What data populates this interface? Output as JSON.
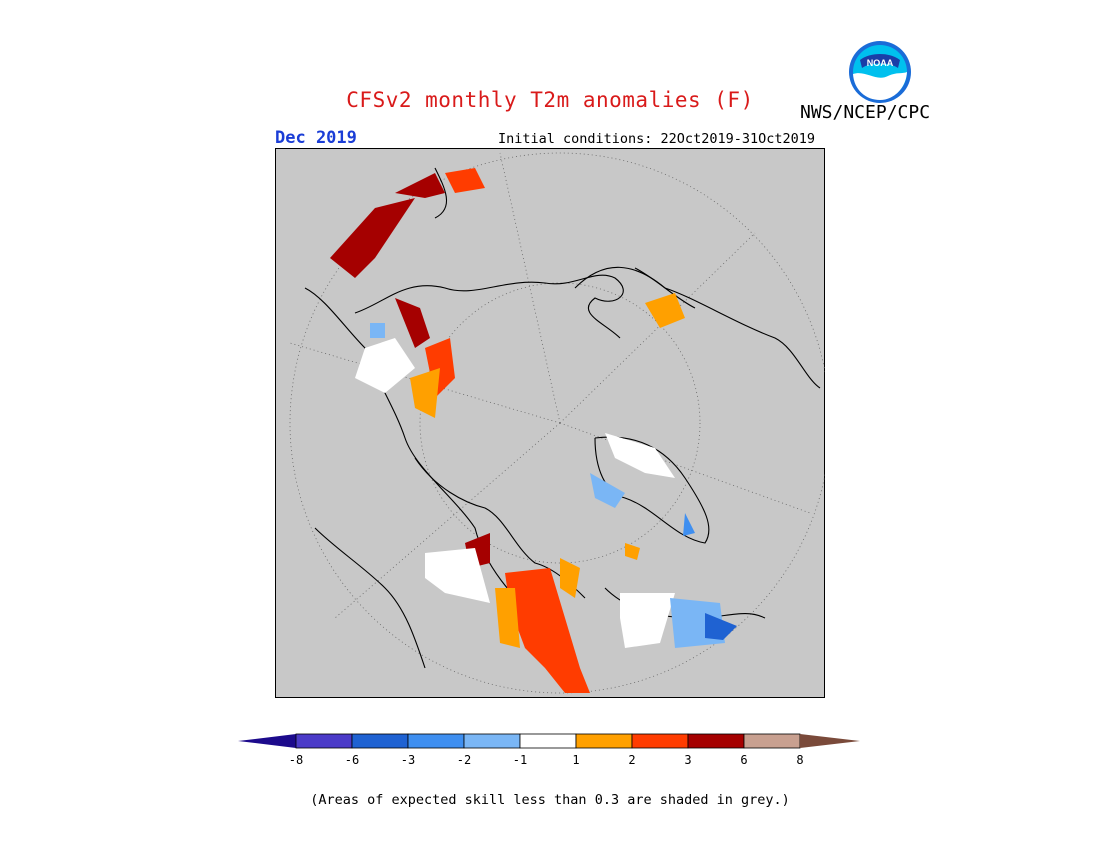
{
  "title": "CFSv2 monthly T2m anomalies (F)",
  "agency": "NWS/NCEP/CPC",
  "logo_text": "NOAA",
  "month": "Dec 2019",
  "initial_conditions": "Initial conditions: 22Oct2019-31Oct2019",
  "footnote": "(Areas of expected skill less than 0.3 are shaded in grey.)",
  "colorbar": {
    "ticks": [
      "-8",
      "-6",
      "-3",
      "-2",
      "-1",
      "1",
      "2",
      "3",
      "6",
      "8"
    ],
    "colors": [
      "#1c0a8c",
      "#4b3bc8",
      "#1f62d2",
      "#3f8ff0",
      "#7ab6f5",
      "#ffffff",
      "#ffa000",
      "#ff3c00",
      "#a50000",
      "#c8a090",
      "#7a4a3a"
    ]
  },
  "map": {
    "projection": "north-polar-stereographic",
    "background_color": "#c8c8c8"
  }
}
